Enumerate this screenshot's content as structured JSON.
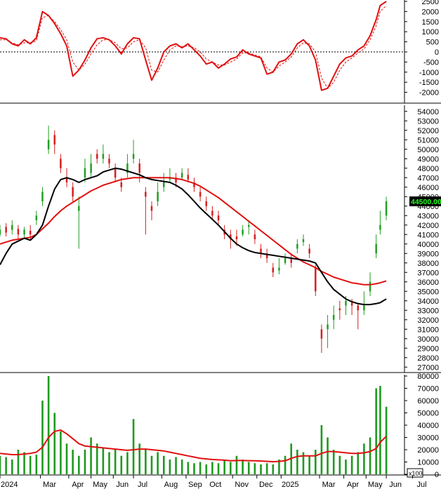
{
  "colors": {
    "up": "#22a022",
    "down": "#d42020",
    "ma_short": "#000000",
    "ma_long": "#e01010",
    "volume": "#1e9a1e",
    "volume_ma": "#e01010",
    "price_badge_bg": "#000000",
    "price_badge_text": "#22ff22",
    "grid_axis": "#000000"
  },
  "chart_data": [
    {
      "type": "line",
      "panel": "oscillator",
      "ylim": [
        -2500,
        2500
      ],
      "yticks": [
        2500,
        2000,
        1500,
        1000,
        500,
        0,
        -500,
        -1000,
        -1500,
        -2000
      ],
      "zero_line": "dotted",
      "x": [
        0,
        3,
        6,
        9,
        12,
        15,
        18,
        21,
        24,
        27,
        30,
        33,
        36,
        39,
        42,
        45,
        48,
        51,
        54,
        57,
        60,
        63,
        66,
        69,
        72,
        75,
        78,
        81,
        84,
        87,
        90,
        93,
        96,
        99,
        102,
        105,
        108,
        111,
        114,
        117,
        120,
        123,
        126,
        129,
        132,
        135,
        138,
        141,
        144,
        147,
        150,
        153,
        156,
        159,
        162,
        165,
        168,
        171,
        174,
        177,
        180,
        183,
        186,
        188,
        191
      ],
      "series": [
        {
          "style": "solid",
          "values": [
            700,
            650,
            400,
            300,
            600,
            400,
            700,
            2000,
            1800,
            1400,
            900,
            300,
            -1200,
            -900,
            -400,
            200,
            650,
            700,
            600,
            300,
            -100,
            400,
            700,
            650,
            -400,
            -1400,
            -800,
            0,
            300,
            400,
            200,
            400,
            100,
            -200,
            -600,
            -500,
            -800,
            -600,
            -350,
            -250,
            100,
            -100,
            -200,
            -300,
            -1100,
            -1000,
            -500,
            -400,
            -100,
            400,
            600,
            300,
            -400,
            -1900,
            -1800,
            -1200,
            -600,
            -300,
            -200,
            100,
            300,
            800,
            1600,
            2300,
            2500
          ]
        },
        {
          "style": "dashed",
          "values": [
            600,
            600,
            450,
            350,
            450,
            450,
            550,
            1700,
            1800,
            1500,
            1100,
            600,
            -500,
            -900,
            -600,
            -100,
            350,
            600,
            600,
            450,
            150,
            200,
            500,
            600,
            200,
            -900,
            -1000,
            -400,
            100,
            300,
            250,
            300,
            200,
            0,
            -350,
            -500,
            -650,
            -650,
            -500,
            -350,
            -50,
            -50,
            -150,
            -250,
            -800,
            -1000,
            -700,
            -500,
            -250,
            200,
            450,
            400,
            0,
            -1300,
            -1800,
            -1500,
            -900,
            -500,
            -300,
            -50,
            150,
            600,
            1300,
            2000,
            2300
          ]
        }
      ]
    },
    {
      "type": "candlestick",
      "panel": "price",
      "ylim": [
        26500,
        54500
      ],
      "yticks": [
        54000,
        53000,
        52000,
        51000,
        50000,
        49000,
        48000,
        47000,
        46000,
        45000,
        44000,
        43000,
        42000,
        41000,
        40000,
        39000,
        38000,
        37000,
        36000,
        35000,
        34000,
        33000,
        32000,
        31000,
        30000,
        29000,
        28000,
        27000
      ],
      "last_price_label": "44500.00",
      "x": [
        0,
        3,
        6,
        9,
        12,
        15,
        18,
        21,
        24,
        27,
        30,
        33,
        36,
        39,
        42,
        45,
        48,
        51,
        54,
        57,
        60,
        63,
        66,
        69,
        72,
        75,
        78,
        81,
        84,
        87,
        90,
        93,
        96,
        99,
        102,
        105,
        108,
        111,
        114,
        117,
        120,
        123,
        126,
        129,
        132,
        135,
        138,
        141,
        144,
        147,
        150,
        153,
        156,
        159,
        162,
        165,
        168,
        171,
        174,
        177,
        180,
        183,
        186,
        188,
        191
      ],
      "close": [
        41500,
        41200,
        42000,
        41000,
        41500,
        41000,
        43000,
        45500,
        51000,
        50500,
        48000,
        46500,
        45000,
        44000,
        48000,
        48500,
        49000,
        49500,
        48500,
        47000,
        46000,
        48500,
        49500,
        47500,
        45000,
        43500,
        45500,
        46500,
        47000,
        46500,
        47500,
        46800,
        46000,
        45000,
        44000,
        43000,
        42500,
        41000,
        40500,
        40500,
        41500,
        42000,
        40500,
        39000,
        38500,
        37000,
        37500,
        38500,
        38000,
        40000,
        40500,
        39000,
        35000,
        30000,
        31500,
        32500,
        33000,
        34000,
        33500,
        33000,
        33500,
        36000,
        40000,
        42000,
        44500
      ],
      "open": [
        41000,
        41800,
        41500,
        41600,
        41000,
        41400,
        42500,
        44500,
        50000,
        51500,
        49000,
        47000,
        46000,
        43500,
        47000,
        47500,
        49500,
        49000,
        49000,
        48000,
        46500,
        47500,
        49000,
        48500,
        45500,
        44000,
        44500,
        46000,
        46800,
        47000,
        47000,
        47300,
        46500,
        45500,
        44500,
        43500,
        43000,
        41500,
        41000,
        40800,
        41000,
        41800,
        41000,
        39500,
        39000,
        37500,
        37200,
        38000,
        38400,
        39500,
        40200,
        39500,
        37500,
        31000,
        31000,
        32000,
        33200,
        33500,
        33800,
        33500,
        33000,
        35000,
        39000,
        41500,
        43000
      ],
      "high": [
        42000,
        42200,
        42500,
        42000,
        41800,
        42000,
        43500,
        46000,
        52500,
        52000,
        49500,
        48000,
        46500,
        45000,
        49000,
        49500,
        50000,
        50500,
        49500,
        48500,
        47000,
        49500,
        51000,
        49000,
        46000,
        44500,
        46500,
        47500,
        48000,
        47500,
        48000,
        48000,
        47000,
        46000,
        45000,
        44000,
        43500,
        42000,
        41500,
        41500,
        42000,
        42500,
        41500,
        40000,
        39500,
        38000,
        38500,
        39000,
        39000,
        40500,
        41000,
        40000,
        37800,
        31500,
        32500,
        33500,
        34000,
        34500,
        34200,
        33800,
        35000,
        37000,
        41000,
        43500,
        45000
      ],
      "low": [
        40800,
        40800,
        41000,
        40500,
        40600,
        40500,
        42000,
        44000,
        49500,
        49500,
        47500,
        46000,
        44500,
        39500,
        46500,
        47000,
        48500,
        48500,
        48000,
        46500,
        45500,
        47000,
        48500,
        46500,
        41000,
        42500,
        44000,
        45500,
        46500,
        46000,
        46800,
        46500,
        45500,
        44500,
        43500,
        42500,
        42000,
        40500,
        39500,
        39800,
        40800,
        41000,
        40000,
        38500,
        38000,
        36500,
        36800,
        37800,
        37500,
        39000,
        39800,
        38500,
        34500,
        28500,
        29000,
        31000,
        32000,
        32500,
        32500,
        31000,
        32500,
        34500,
        38500,
        41000,
        42500
      ],
      "series": [
        {
          "name": "",
          "style": "solid-black",
          "values": [
            37800,
            39000,
            40000,
            40300,
            40600,
            40400,
            41000,
            42000,
            44000,
            45800,
            46800,
            47000,
            46800,
            46500,
            46800,
            47000,
            47200,
            47600,
            47800,
            48000,
            47900,
            47700,
            47500,
            47300,
            47000,
            46800,
            46700,
            46600,
            46500,
            46200,
            45800,
            45200,
            44500,
            43800,
            43200,
            42600,
            42000,
            41300,
            40600,
            40000,
            39600,
            39300,
            39100,
            39000,
            38900,
            38800,
            38700,
            38600,
            38500,
            38400,
            38300,
            38200,
            38000,
            37000,
            36000,
            35200,
            34700,
            34200,
            33900,
            33700,
            33600,
            33600,
            33700,
            33800,
            34200
          ]
        },
        {
          "name": "",
          "style": "solid-red",
          "values": [
            40000,
            40200,
            40400,
            40500,
            40600,
            40700,
            41000,
            41600,
            42200,
            42900,
            43500,
            44000,
            44400,
            44800,
            45200,
            45600,
            45900,
            46200,
            46400,
            46600,
            46800,
            46900,
            47000,
            47000,
            47000,
            47000,
            47000,
            47000,
            47000,
            46900,
            46800,
            46600,
            46400,
            46100,
            45700,
            45300,
            44900,
            44400,
            43900,
            43400,
            42900,
            42400,
            41900,
            41400,
            40900,
            40400,
            39900,
            39400,
            38900,
            38500,
            38100,
            37800,
            37500,
            37100,
            36800,
            36500,
            36300,
            36100,
            35900,
            35800,
            35700,
            35700,
            35800,
            35900,
            36100
          ]
        }
      ]
    },
    {
      "type": "bar",
      "panel": "volume",
      "scale_label": "x100",
      "ylim": [
        0,
        80000
      ],
      "yticks": [
        80000,
        70000,
        60000,
        50000,
        40000,
        30000,
        20000,
        10000,
        0
      ],
      "x": [
        0,
        3,
        6,
        9,
        12,
        15,
        18,
        21,
        24,
        27,
        30,
        33,
        36,
        39,
        42,
        45,
        48,
        51,
        54,
        57,
        60,
        63,
        66,
        69,
        72,
        75,
        78,
        81,
        84,
        87,
        90,
        93,
        96,
        99,
        102,
        105,
        108,
        111,
        114,
        117,
        120,
        123,
        126,
        129,
        132,
        135,
        138,
        141,
        144,
        147,
        150,
        153,
        156,
        159,
        162,
        165,
        168,
        171,
        174,
        177,
        180,
        183,
        186,
        188,
        191
      ],
      "values": [
        15000,
        14000,
        12000,
        20000,
        18000,
        15000,
        16000,
        60000,
        80000,
        50000,
        35000,
        25000,
        20000,
        15000,
        20000,
        30000,
        25000,
        22000,
        18000,
        20000,
        15000,
        18000,
        45000,
        25000,
        20000,
        15000,
        18000,
        15000,
        12000,
        14000,
        12000,
        10000,
        9000,
        10000,
        8000,
        10000,
        9000,
        12000,
        10000,
        15000,
        12000,
        10000,
        9000,
        8000,
        9000,
        8000,
        12000,
        15000,
        25000,
        20000,
        18000,
        15000,
        20000,
        40000,
        30000,
        20000,
        15000,
        12000,
        15000,
        18000,
        25000,
        30000,
        70000,
        72000,
        55000
      ],
      "series": [
        {
          "name": "",
          "style": "volume-ma-red",
          "values": [
            17000,
            16500,
            16000,
            16000,
            16500,
            17000,
            18000,
            22000,
            30000,
            35000,
            36000,
            33000,
            29000,
            25000,
            23000,
            22500,
            22000,
            21500,
            21000,
            20500,
            20000,
            19500,
            20000,
            20500,
            20500,
            20000,
            19500,
            19000,
            18000,
            17000,
            16000,
            15000,
            14000,
            13000,
            12500,
            12000,
            11800,
            11500,
            11000,
            11200,
            11200,
            11100,
            11000,
            10800,
            10500,
            10200,
            10500,
            11000,
            13000,
            14500,
            15000,
            15000,
            15000,
            17000,
            18500,
            18500,
            18000,
            17500,
            17000,
            17000,
            17500,
            18500,
            21000,
            26000,
            31000
          ]
        }
      ]
    }
  ],
  "x_axis": {
    "ticks": [
      {
        "label": "2024",
        "x": 0
      },
      {
        "label": "Mar",
        "x": 20
      },
      {
        "label": "Apr",
        "x": 34
      },
      {
        "label": "May",
        "x": 45
      },
      {
        "label": "Jun",
        "x": 56
      },
      {
        "label": "Jul",
        "x": 66
      },
      {
        "label": "Aug",
        "x": 80
      },
      {
        "label": "Sep",
        "x": 92
      },
      {
        "label": "Oct",
        "x": 102
      },
      {
        "label": "Nov",
        "x": 115
      },
      {
        "label": "Dec",
        "x": 127
      },
      {
        "label": "2025",
        "x": 139
      },
      {
        "label": "Mar",
        "x": 158
      },
      {
        "label": "Apr",
        "x": 170
      },
      {
        "label": "May",
        "x": 181
      },
      {
        "label": "Jun",
        "x": 191
      },
      {
        "label": "Jul",
        "x": 204
      }
    ]
  }
}
